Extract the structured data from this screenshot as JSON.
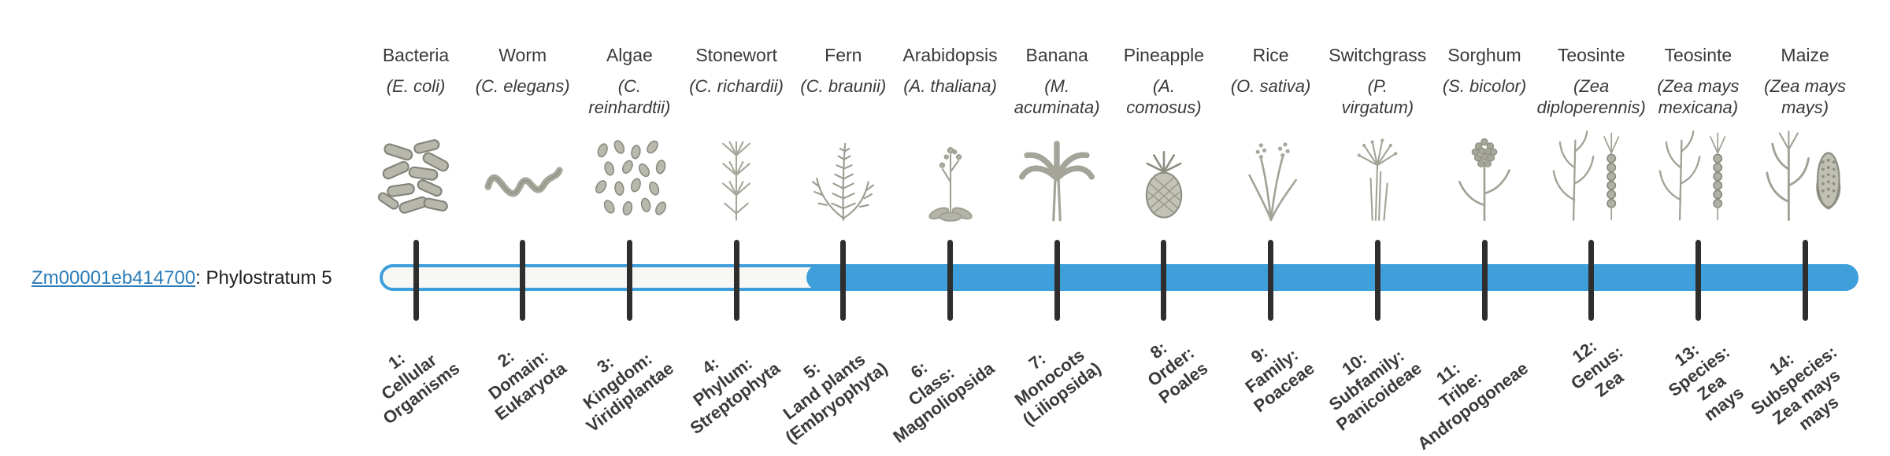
{
  "colors": {
    "bar_blue": "#3f9fdb",
    "link_blue": "#2b7cb8",
    "tick_dark": "#2e2e2e"
  },
  "gene": {
    "id": "Zm00001eb414700",
    "suffix": ": Phylostratum 5",
    "phylostratum": 5
  },
  "bar": {
    "total_strata": 14,
    "filled_from_stratum": 5
  },
  "organisms": [
    {
      "name": "Bacteria",
      "sci_lines": [
        "(E. coli)"
      ],
      "icon": "bacteria-icon",
      "stratum_lines": [
        "1:",
        "Cellular",
        "Organisms"
      ]
    },
    {
      "name": "Worm",
      "sci_lines": [
        "(C. elegans)"
      ],
      "icon": "worm-icon",
      "stratum_lines": [
        "2:",
        "Domain:",
        "Eukaryota"
      ]
    },
    {
      "name": "Algae",
      "sci_lines": [
        "(C.",
        "reinhardtii)"
      ],
      "icon": "algae-icon",
      "stratum_lines": [
        "3:",
        "Kingdom:",
        "Viridiplantae"
      ]
    },
    {
      "name": "Stonewort",
      "sci_lines": [
        "(C. richardii)"
      ],
      "icon": "stonewort-icon",
      "stratum_lines": [
        "4:",
        "Phylum:",
        "Streptophyta"
      ]
    },
    {
      "name": "Fern",
      "sci_lines": [
        "(C. braunii)"
      ],
      "icon": "fern-icon",
      "stratum_lines": [
        "5:",
        "Land plants",
        "(Embryophyta)"
      ]
    },
    {
      "name": "Arabidopsis",
      "sci_lines": [
        "(A. thaliana)"
      ],
      "icon": "arabidopsis-icon",
      "stratum_lines": [
        "6:",
        "Class:",
        "Magnoliopsida"
      ]
    },
    {
      "name": "Banana",
      "sci_lines": [
        "(M.",
        "acuminata)"
      ],
      "icon": "banana-icon",
      "stratum_lines": [
        "7:",
        "Monocots",
        "(Liliopsida)"
      ]
    },
    {
      "name": "Pineapple",
      "sci_lines": [
        "(A.",
        "comosus)"
      ],
      "icon": "pineapple-icon",
      "stratum_lines": [
        "8:",
        "Order:",
        "Poales"
      ]
    },
    {
      "name": "Rice",
      "sci_lines": [
        "(O. sativa)"
      ],
      "icon": "rice-icon",
      "stratum_lines": [
        "9:",
        "Family:",
        "Poaceae"
      ]
    },
    {
      "name": "Switchgrass",
      "sci_lines": [
        "(P.",
        "virgatum)"
      ],
      "icon": "switchgrass-icon",
      "stratum_lines": [
        "10:",
        "Subfamily:",
        "Panicoideae"
      ]
    },
    {
      "name": "Sorghum",
      "sci_lines": [
        "(S. bicolor)"
      ],
      "icon": "sorghum-icon",
      "stratum_lines": [
        "11:",
        "Tribe:",
        "Andropogoneae"
      ]
    },
    {
      "name": "Teosinte",
      "sci_lines": [
        "(Zea",
        "diploperennis)"
      ],
      "icon": "teosinte-diploperennis-icon",
      "stratum_lines": [
        "12:",
        "Genus:",
        "Zea"
      ]
    },
    {
      "name": "Teosinte",
      "sci_lines": [
        "(Zea mays",
        "mexicana)"
      ],
      "icon": "teosinte-mexicana-icon",
      "stratum_lines": [
        "13:",
        "Species:",
        "Zea",
        "mays"
      ]
    },
    {
      "name": "Maize",
      "sci_lines": [
        "(Zea mays",
        "mays)"
      ],
      "icon": "maize-icon",
      "stratum_lines": [
        "14:",
        "Subspecies:",
        "Zea mays",
        "mays"
      ]
    }
  ]
}
